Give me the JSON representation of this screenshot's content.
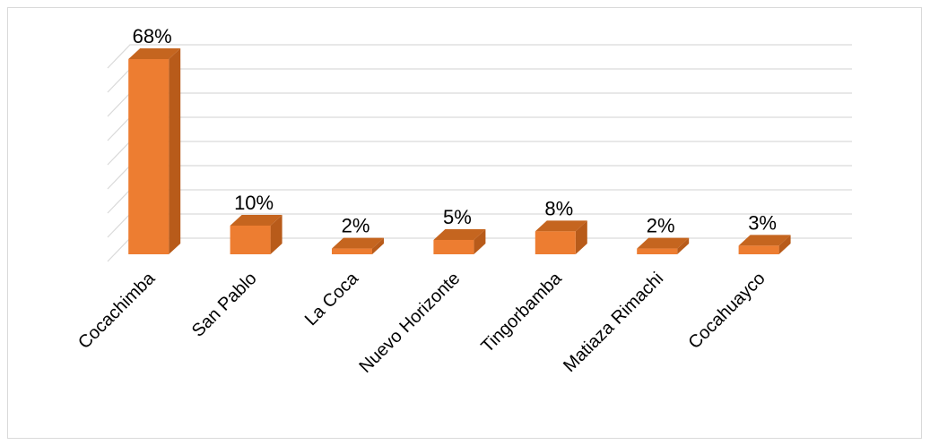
{
  "chart_data": {
    "type": "bar",
    "style": "3d-column",
    "categories": [
      "Cocachimba",
      "San Pablo",
      "La Coca",
      "Nuevo Horizonte",
      "Tingorbamba",
      "Matiaza Rimachi",
      "Cocahuayco"
    ],
    "values": [
      68,
      10,
      2,
      5,
      8,
      2,
      3
    ],
    "data_labels": [
      "68%",
      "10%",
      "2%",
      "5%",
      "8%",
      "2%",
      "3%"
    ],
    "unit": "%",
    "ylim": [
      0,
      80
    ],
    "grid": true,
    "y_tick_labels_shown": false,
    "legend": "none",
    "colors": {
      "bar_front": "#ED7D31",
      "bar_side": "#B85B1A",
      "bar_top": "#C5651F",
      "gridline": "#d9d9d9",
      "frame": "#d9d9d9"
    }
  }
}
